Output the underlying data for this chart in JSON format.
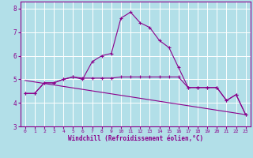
{
  "xlabel": "Windchill (Refroidissement éolien,°C)",
  "bg_color": "#b2dfe8",
  "line_color": "#8b008b",
  "grid_color": "#ffffff",
  "xlim": [
    -0.5,
    23.5
  ],
  "ylim": [
    3.0,
    8.3
  ],
  "xticks": [
    0,
    1,
    2,
    3,
    4,
    5,
    6,
    7,
    8,
    9,
    10,
    11,
    12,
    13,
    14,
    15,
    16,
    17,
    18,
    19,
    20,
    21,
    22,
    23
  ],
  "yticks": [
    3,
    4,
    5,
    6,
    7,
    8
  ],
  "line1_x": [
    0,
    1,
    2,
    3,
    4,
    5,
    6,
    7,
    8,
    9,
    10,
    11,
    12,
    13,
    14,
    15,
    16,
    17,
    18,
    19,
    20,
    21,
    22,
    23
  ],
  "line1_y": [
    4.4,
    4.4,
    4.85,
    4.85,
    5.0,
    5.1,
    5.0,
    5.75,
    6.0,
    6.1,
    7.6,
    7.85,
    7.4,
    7.2,
    6.65,
    6.35,
    5.5,
    4.65,
    4.65,
    4.65,
    4.65,
    4.1,
    4.35,
    3.5
  ],
  "line2_x": [
    0,
    1,
    2,
    3,
    4,
    5,
    6,
    7,
    8,
    9,
    10,
    11,
    12,
    13,
    14,
    15,
    16,
    17,
    18,
    19,
    20,
    21,
    22,
    23
  ],
  "line2_y": [
    4.4,
    4.4,
    4.85,
    4.85,
    5.0,
    5.1,
    5.05,
    5.05,
    5.05,
    5.05,
    5.1,
    5.1,
    5.1,
    5.1,
    5.1,
    5.1,
    5.1,
    4.65,
    4.65,
    4.65,
    4.65,
    4.1,
    4.35,
    3.5
  ],
  "line3_x": [
    0,
    23
  ],
  "line3_y": [
    4.95,
    3.5
  ]
}
